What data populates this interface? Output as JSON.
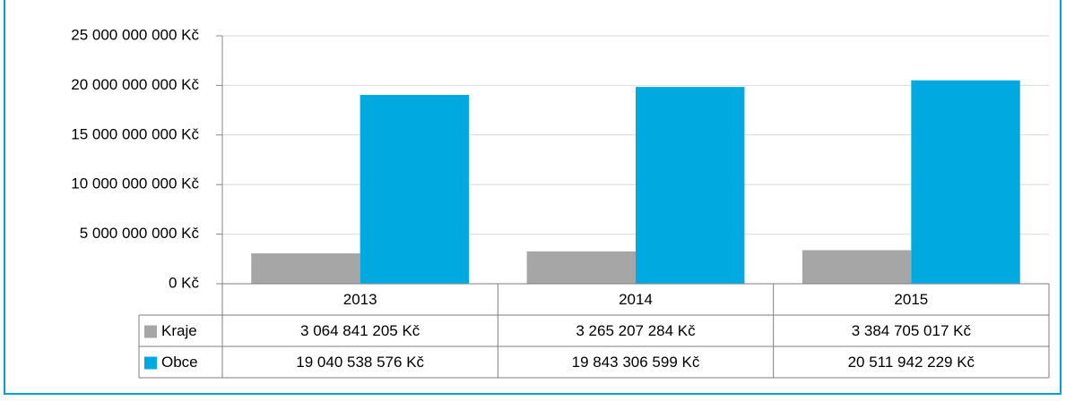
{
  "chart_data": {
    "type": "bar",
    "categories": [
      "2013",
      "2014",
      "2015"
    ],
    "series": [
      {
        "name": "Kraje",
        "color": "#a6a6a6",
        "values": [
          3064841205,
          3265207284,
          3384705017
        ],
        "value_labels": [
          "3 064 841 205 Kč",
          "3 265 207 284 Kč",
          "3 384 705 017 Kč"
        ]
      },
      {
        "name": "Obce",
        "color": "#00a9e0",
        "values": [
          19040538576,
          19843306599,
          20511942229
        ],
        "value_labels": [
          "19 040 538 576 Kč",
          "19 843 306 599 Kč",
          "20 511 942 229 Kč"
        ]
      }
    ],
    "ylim": [
      0,
      25000000000
    ],
    "yticks": [
      {
        "value": 0,
        "label": "0 Kč"
      },
      {
        "value": 5000000000,
        "label": "5 000 000 000 Kč"
      },
      {
        "value": 10000000000,
        "label": "10 000 000 000 Kč"
      },
      {
        "value": 15000000000,
        "label": "15 000 000 000 Kč"
      },
      {
        "value": 20000000000,
        "label": "20 000 000 000 Kč"
      },
      {
        "value": 25000000000,
        "label": "25 000 000 000 Kč"
      }
    ],
    "grid": true
  }
}
